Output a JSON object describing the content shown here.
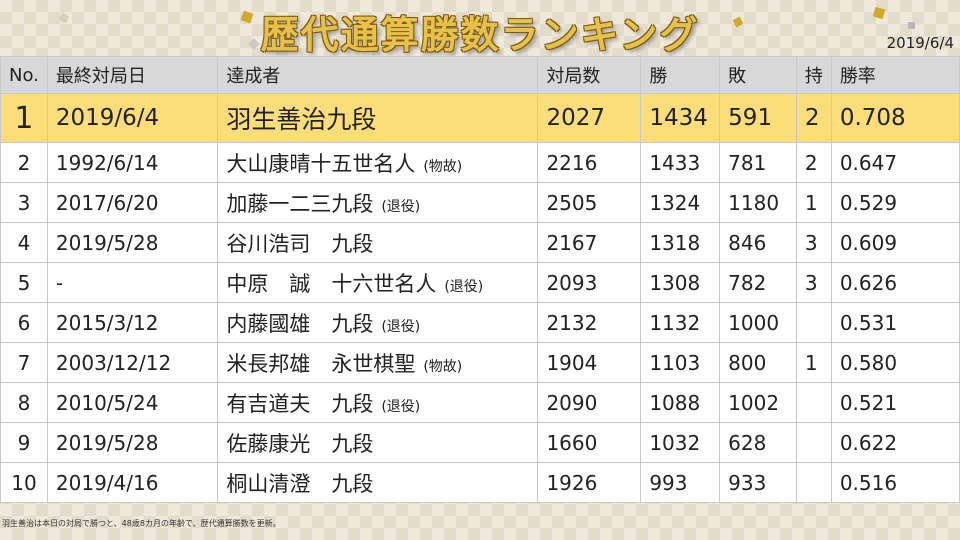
{
  "header": {
    "title": "歴代通算勝数ランキング",
    "date": "2019/6/4"
  },
  "columns": [
    "No.",
    "最終対局日",
    "達成者",
    "対局数",
    "勝",
    "敗",
    "持",
    "勝率"
  ],
  "rows": [
    {
      "no": "1",
      "date": "2019/6/4",
      "name": "羽生善治九段",
      "note": "",
      "games": "2027",
      "wins": "1434",
      "losses": "591",
      "ji": "2",
      "rate": "0.708"
    },
    {
      "no": "2",
      "date": "1992/6/14",
      "name": "大山康晴十五世名人",
      "note": "(物故)",
      "games": "2216",
      "wins": "1433",
      "losses": "781",
      "ji": "2",
      "rate": "0.647"
    },
    {
      "no": "3",
      "date": "2017/6/20",
      "name": "加藤一二三九段",
      "note": "(退役)",
      "games": "2505",
      "wins": "1324",
      "losses": "1180",
      "ji": "1",
      "rate": "0.529"
    },
    {
      "no": "4",
      "date": "2019/5/28",
      "name": "谷川浩司　九段",
      "note": "",
      "games": "2167",
      "wins": "1318",
      "losses": "846",
      "ji": "3",
      "rate": "0.609"
    },
    {
      "no": "5",
      "date": "-",
      "name": "中原　誠　十六世名人",
      "note": "(退役)",
      "games": "2093",
      "wins": "1308",
      "losses": "782",
      "ji": "3",
      "rate": "0.626"
    },
    {
      "no": "6",
      "date": "2015/3/12",
      "name": "内藤國雄　九段",
      "note": "(退役)",
      "games": "2132",
      "wins": "1132",
      "losses": "1000",
      "ji": "",
      "rate": "0.531"
    },
    {
      "no": "7",
      "date": "2003/12/12",
      "name": "米長邦雄　永世棋聖",
      "note": "(物故)",
      "games": "1904",
      "wins": "1103",
      "losses": "800",
      "ji": "1",
      "rate": "0.580"
    },
    {
      "no": "8",
      "date": "2010/5/24",
      "name": "有吉道夫　九段",
      "note": "(退役)",
      "games": "2090",
      "wins": "1088",
      "losses": "1002",
      "ji": "",
      "rate": "0.521"
    },
    {
      "no": "9",
      "date": "2019/5/28",
      "name": "佐藤康光　九段",
      "note": "",
      "games": "1660",
      "wins": "1032",
      "losses": "628",
      "ji": "",
      "rate": "0.622"
    },
    {
      "no": "10",
      "date": "2019/4/16",
      "name": "桐山清澄　九段",
      "note": "",
      "games": "1926",
      "wins": "993",
      "losses": "933",
      "ji": "",
      "rate": "0.516"
    }
  ],
  "footnote": "羽生善治は本日の対局で勝つと、48歳8カ月の年齢で、歴代通算勝数を更新。",
  "colors": {
    "highlight": "#fbdd7a",
    "title_gold": "#e8c14a",
    "header_gray": "#d8d8d8"
  }
}
